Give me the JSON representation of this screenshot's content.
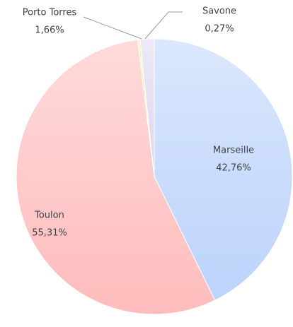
{
  "chart_data": {
    "type": "pie",
    "categories": [
      "Marseille",
      "Toulon",
      "Savone",
      "Porto Torres"
    ],
    "values": [
      42.76,
      55.31,
      0.27,
      1.66
    ],
    "value_labels": [
      "42,76%",
      "55,31%",
      "0,27%",
      "1,66%"
    ],
    "colors": [
      "#bcd3fb",
      "#ffbcbc",
      "#eeee9a",
      "#ddd6ef"
    ]
  }
}
